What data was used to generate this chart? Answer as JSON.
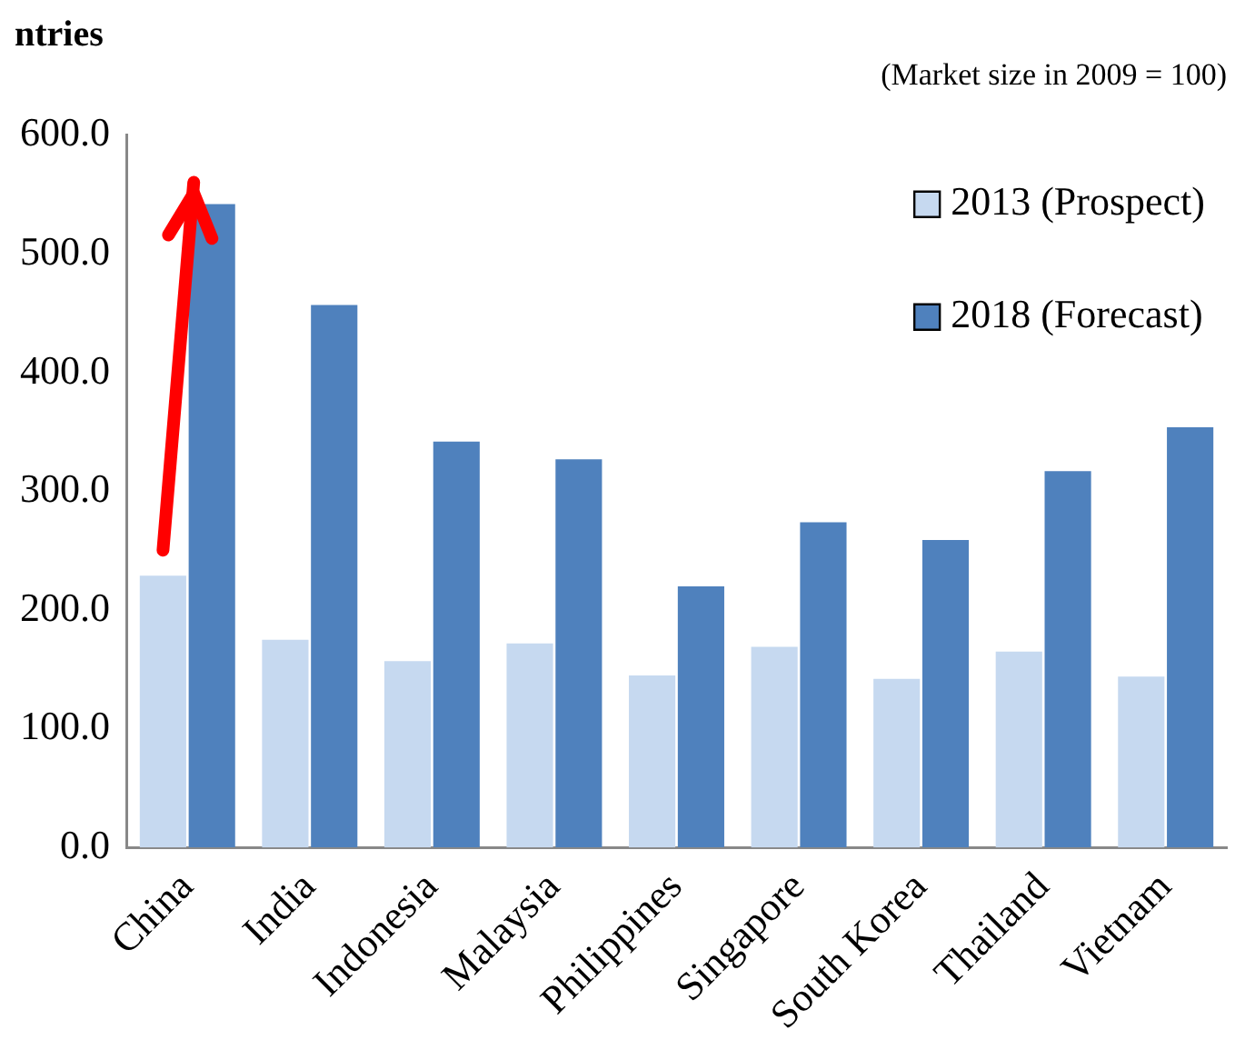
{
  "chart_data": {
    "type": "bar",
    "title": "ntries",
    "subtitle": "(Market size in 2009 = 100)",
    "categories": [
      "China",
      "India",
      "Indonesia",
      "Malaysia",
      "Philippines",
      "Singapore",
      "South Korea",
      "Thailand",
      "Vietnam"
    ],
    "series": [
      {
        "name": "2013 (Prospect)",
        "color": "#c6d9f0",
        "values": [
          229,
          175,
          157,
          172,
          145,
          169,
          142,
          165,
          144
        ]
      },
      {
        "name": "2018 (Forecast)",
        "color": "#4f81bd",
        "values": [
          542,
          457,
          342,
          327,
          220,
          274,
          259,
          317,
          354
        ]
      }
    ],
    "ylim": [
      0,
      600
    ],
    "yticks": [
      {
        "value": 0,
        "label": "0.0"
      },
      {
        "value": 100,
        "label": "100.0"
      },
      {
        "value": 200,
        "label": "200.0"
      },
      {
        "value": 300,
        "label": "300.0"
      },
      {
        "value": 400,
        "label": "400.0"
      },
      {
        "value": 500,
        "label": "500.0"
      },
      {
        "value": 600,
        "label": "600.0"
      }
    ],
    "legend": "top right"
  }
}
